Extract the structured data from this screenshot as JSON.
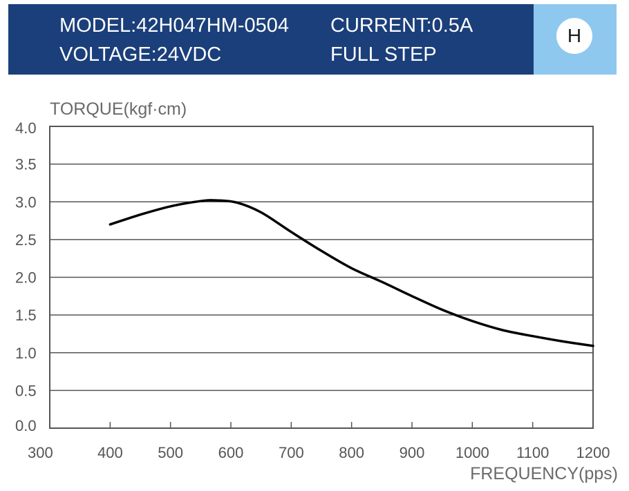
{
  "header": {
    "model": "MODEL:42H047HM-0504",
    "current": "CURRENT:0.5A",
    "voltage": "VOLTAGE:24VDC",
    "step": "FULL STEP",
    "badge": "H"
  },
  "colors": {
    "header_bg": "#1b3f7a",
    "badge_bg": "#8ec8ef",
    "curve": "#000000",
    "grid": "#555555"
  },
  "chart_data": {
    "type": "line",
    "title": "",
    "xlabel": "FREQUENCY(pps)",
    "ylabel": "TORQUE(kgf·cm)",
    "xlim": [
      300,
      1200
    ],
    "ylim": [
      0.0,
      4.0
    ],
    "x_ticks": [
      "300",
      "400",
      "500",
      "600",
      "700",
      "800",
      "900",
      "1000",
      "1100",
      "1200"
    ],
    "y_ticks": [
      "4.0",
      "3.5",
      "3.0",
      "2.5",
      "2.0",
      "1.5",
      "1.0",
      "0.5",
      "0.0"
    ],
    "grid": "horizontal",
    "series": [
      {
        "x": [
          400,
          450,
          500,
          550,
          575,
          610,
          650,
          700,
          750,
          800,
          850,
          900,
          950,
          1000,
          1050,
          1100,
          1150,
          1200
        ],
        "y": [
          2.7,
          2.83,
          2.94,
          3.01,
          3.02,
          2.99,
          2.86,
          2.6,
          2.35,
          2.12,
          1.94,
          1.75,
          1.57,
          1.42,
          1.3,
          1.22,
          1.15,
          1.09
        ]
      }
    ]
  }
}
